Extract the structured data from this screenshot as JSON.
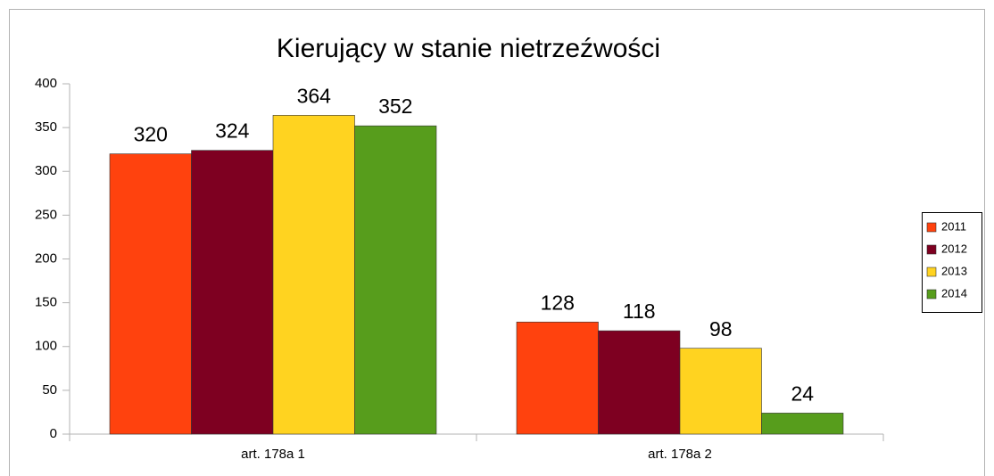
{
  "chart_data": {
    "type": "bar",
    "title": "Kierujący w stanie nietrzeźwości",
    "categories": [
      "art. 178a 1",
      "art. 178a 2"
    ],
    "series": [
      {
        "name": "2011",
        "color": "#ff420e",
        "values": [
          320,
          128
        ]
      },
      {
        "name": "2012",
        "color": "#7e0021",
        "values": [
          324,
          118
        ]
      },
      {
        "name": "2013",
        "color": "#ffd320",
        "values": [
          364,
          98
        ]
      },
      {
        "name": "2014",
        "color": "#579d1c",
        "values": [
          352,
          24
        ]
      }
    ],
    "ylim": [
      0,
      400
    ],
    "yticks": [
      0,
      50,
      100,
      150,
      200,
      250,
      300,
      350,
      400
    ],
    "grid": false,
    "legend": "right"
  }
}
